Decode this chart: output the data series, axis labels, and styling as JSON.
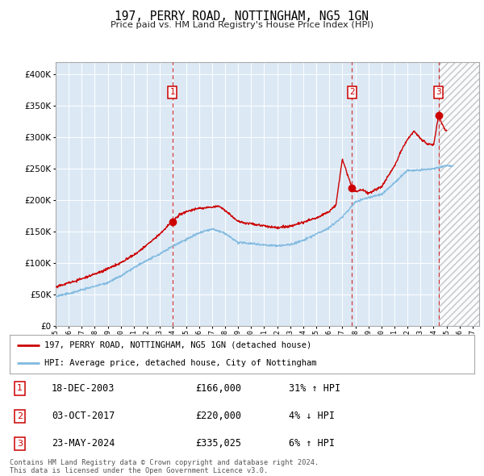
{
  "title": "197, PERRY ROAD, NOTTINGHAM, NG5 1GN",
  "subtitle": "Price paid vs. HM Land Registry's House Price Index (HPI)",
  "background_color": "#ffffff",
  "plot_bg_color": "#dce9f5",
  "grid_color": "#ffffff",
  "hpi_line_color": "#7fb9e0",
  "price_line_color": "#cc0000",
  "sale_year_floats": [
    2003.96,
    2017.75,
    2024.38
  ],
  "sale_prices": [
    166000,
    220000,
    335025
  ],
  "sale_labels": [
    "1",
    "2",
    "3"
  ],
  "sale_date_strs": [
    "18-DEC-2003",
    "03-OCT-2017",
    "23-MAY-2024"
  ],
  "sale_price_strs": [
    "£166,000",
    "£220,000",
    "£335,025"
  ],
  "sale_hpi_strs": [
    "31% ↑ HPI",
    "4% ↓ HPI",
    "6% ↑ HPI"
  ],
  "legend_line1": "197, PERRY ROAD, NOTTINGHAM, NG5 1GN (detached house)",
  "legend_line2": "HPI: Average price, detached house, City of Nottingham",
  "footer": "Contains HM Land Registry data © Crown copyright and database right 2024.\nThis data is licensed under the Open Government Licence v3.0.",
  "ylim": [
    0,
    420000
  ],
  "xmin_year": 1995.0,
  "xmax_year": 2027.5,
  "future_start_year": 2024.42,
  "yticks": [
    0,
    50000,
    100000,
    150000,
    200000,
    250000,
    300000,
    350000,
    400000
  ],
  "xtick_years": [
    1995,
    1996,
    1997,
    1998,
    1999,
    2000,
    2001,
    2002,
    2003,
    2004,
    2005,
    2006,
    2007,
    2008,
    2009,
    2010,
    2011,
    2012,
    2013,
    2014,
    2015,
    2016,
    2017,
    2018,
    2019,
    2020,
    2021,
    2022,
    2023,
    2024,
    2025,
    2026,
    2027
  ],
  "hpi_anchors_x": [
    1995.0,
    1996.0,
    1997.0,
    1998.0,
    1999.0,
    2000.0,
    2001.0,
    2002.0,
    2003.0,
    2004.0,
    2005.0,
    2006.0,
    2007.0,
    2008.0,
    2009.0,
    2010.0,
    2011.0,
    2012.0,
    2013.0,
    2014.0,
    2015.0,
    2016.0,
    2017.0,
    2018.0,
    2019.0,
    2020.0,
    2021.0,
    2022.0,
    2023.0,
    2024.0,
    2025.0
  ],
  "hpi_anchors_y": [
    47000,
    52000,
    58000,
    64000,
    70000,
    80000,
    93000,
    105000,
    115000,
    128000,
    138000,
    148000,
    155000,
    148000,
    134000,
    133000,
    130000,
    129000,
    131000,
    138000,
    148000,
    158000,
    175000,
    198000,
    205000,
    210000,
    228000,
    248000,
    248000,
    250000,
    255000
  ],
  "price_anchors_x": [
    1995.0,
    1996.0,
    1997.0,
    1998.0,
    1999.0,
    2000.0,
    2001.0,
    2002.0,
    2003.0,
    2003.96,
    2004.5,
    2005.0,
    2006.0,
    2007.0,
    2007.5,
    2008.0,
    2009.0,
    2010.0,
    2011.0,
    2012.0,
    2013.0,
    2014.0,
    2015.0,
    2016.0,
    2016.5,
    2017.0,
    2017.5,
    2017.75,
    2018.0,
    2018.5,
    2019.0,
    2020.0,
    2021.0,
    2021.5,
    2022.0,
    2022.5,
    2023.0,
    2023.5,
    2024.0,
    2024.38,
    2024.8,
    2025.0
  ],
  "price_anchors_y": [
    62000,
    68000,
    75000,
    82000,
    90000,
    100000,
    112000,
    128000,
    145000,
    166000,
    175000,
    180000,
    185000,
    188000,
    190000,
    182000,
    165000,
    162000,
    158000,
    155000,
    158000,
    165000,
    172000,
    182000,
    192000,
    265000,
    235000,
    220000,
    215000,
    218000,
    213000,
    222000,
    255000,
    278000,
    298000,
    310000,
    298000,
    290000,
    288000,
    335025,
    315000,
    310000
  ]
}
